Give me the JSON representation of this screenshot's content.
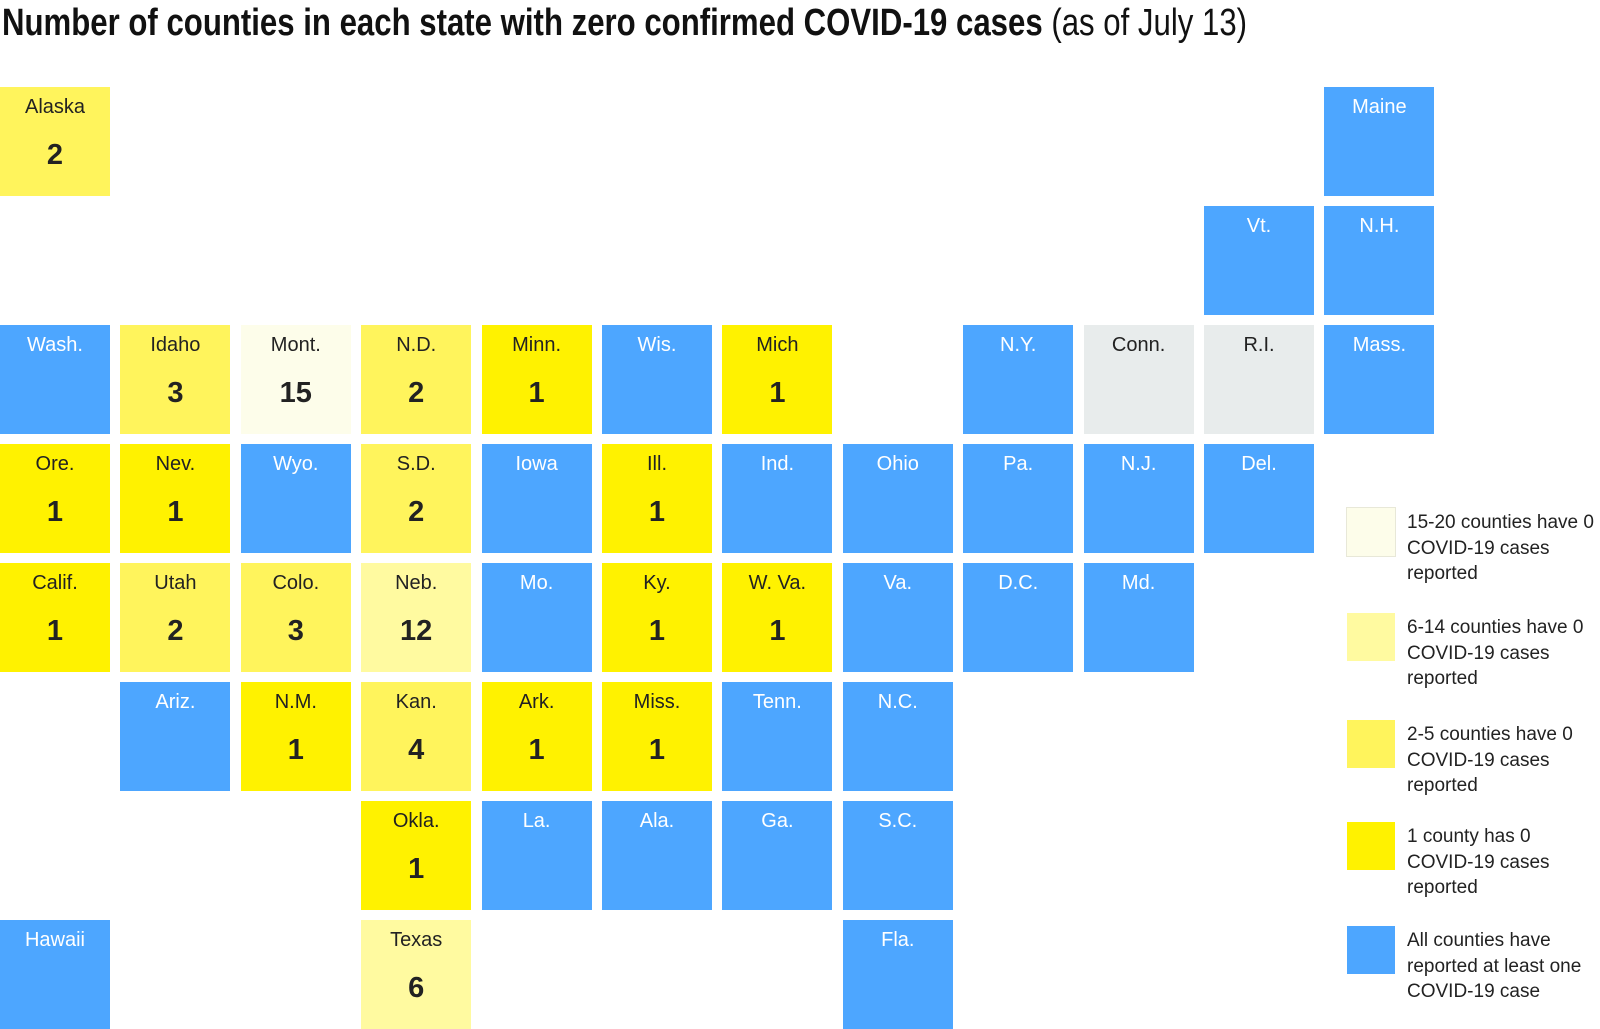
{
  "title": {
    "bold": "Number of counties in each state with zero confirmed COVID-19 cases",
    "regular": "(as of July 13)"
  },
  "tiles": [
    {
      "label": "Alaska",
      "value": 2,
      "color": "#fff45c"
    },
    {
      "label": "Maine",
      "color": "#4da6ff"
    },
    {
      "label": "Vt.",
      "color": "#4da6ff"
    },
    {
      "label": "N.H.",
      "color": "#4da6ff"
    },
    {
      "label": "Wash.",
      "color": "#4da6ff"
    },
    {
      "label": "Idaho",
      "value": 3,
      "color": "#fff45c"
    },
    {
      "label": "Mont.",
      "value": 15,
      "color": "#fdfdea"
    },
    {
      "label": "N.D.",
      "value": 2,
      "color": "#fff45c"
    },
    {
      "label": "Minn.",
      "value": 1,
      "color": "#fff200"
    },
    {
      "label": "Wis.",
      "color": "#4da6ff"
    },
    {
      "label": "Mich",
      "value": 1,
      "color": "#fff200"
    },
    {
      "label": "N.Y.",
      "color": "#4da6ff"
    },
    {
      "label": "Conn.",
      "color": "#e8ecec"
    },
    {
      "label": "R.I.",
      "color": "#e8ecec"
    },
    {
      "label": "Mass.",
      "color": "#4da6ff"
    },
    {
      "label": "Ore.",
      "value": 1,
      "color": "#fff200"
    },
    {
      "label": "Nev.",
      "value": 1,
      "color": "#fff200"
    },
    {
      "label": "Wyo.",
      "color": "#4da6ff"
    },
    {
      "label": "S.D.",
      "value": 2,
      "color": "#fff45c"
    },
    {
      "label": "Iowa",
      "color": "#4da6ff"
    },
    {
      "label": "Ill.",
      "value": 1,
      "color": "#fff200"
    },
    {
      "label": "Ind.",
      "color": "#4da6ff"
    },
    {
      "label": "Ohio",
      "color": "#4da6ff"
    },
    {
      "label": "Pa.",
      "color": "#4da6ff"
    },
    {
      "label": "N.J.",
      "color": "#4da6ff"
    },
    {
      "label": "Del.",
      "color": "#4da6ff"
    },
    {
      "label": "Calif.",
      "value": 1,
      "color": "#fff200"
    },
    {
      "label": "Utah",
      "value": 2,
      "color": "#fff45c"
    },
    {
      "label": "Colo.",
      "value": 3,
      "color": "#fff45c"
    },
    {
      "label": "Neb.",
      "value": 12,
      "color": "#fffaa0"
    },
    {
      "label": "Mo.",
      "color": "#4da6ff"
    },
    {
      "label": "Ky.",
      "value": 1,
      "color": "#fff200"
    },
    {
      "label": "W. Va.",
      "value": 1,
      "color": "#fff200"
    },
    {
      "label": "Va.",
      "color": "#4da6ff"
    },
    {
      "label": "D.C.",
      "color": "#4da6ff"
    },
    {
      "label": "Md.",
      "color": "#4da6ff"
    },
    {
      "label": "Ariz.",
      "color": "#4da6ff"
    },
    {
      "label": "N.M.",
      "value": 1,
      "color": "#fff200"
    },
    {
      "label": "Kan.",
      "value": 4,
      "color": "#fff45c"
    },
    {
      "label": "Ark.",
      "value": 1,
      "color": "#fff200"
    },
    {
      "label": "Miss.",
      "value": 1,
      "color": "#fff200"
    },
    {
      "label": "Tenn.",
      "color": "#4da6ff"
    },
    {
      "label": "N.C.",
      "color": "#4da6ff"
    },
    {
      "label": "Okla.",
      "value": 1,
      "color": "#fff200"
    },
    {
      "label": "La.",
      "color": "#4da6ff"
    },
    {
      "label": "Ala.",
      "color": "#4da6ff"
    },
    {
      "label": "Ga.",
      "color": "#4da6ff"
    },
    {
      "label": "S.C.",
      "color": "#4da6ff"
    },
    {
      "label": "Hawaii",
      "color": "#4da6ff"
    },
    {
      "label": "Texas",
      "value": 6,
      "color": "#fffaa0"
    },
    {
      "label": "Fla.",
      "color": "#4da6ff"
    }
  ],
  "legend": [
    {
      "text": "15-20 counties have 0 COVID-19 cases reported",
      "color": "#fdfdea"
    },
    {
      "text": "6-14 counties have 0 COVID-19 cases reported",
      "color": "#fffaa0"
    },
    {
      "text": "2-5 counties have 0 COVID-19 cases reported",
      "color": "#fff45c"
    },
    {
      "text": "1 county has 0 COVID-19 cases reported",
      "color": "#fff200"
    },
    {
      "text": "All counties have reported at least one COVID-19 case",
      "color": "#4da6ff"
    }
  ]
}
